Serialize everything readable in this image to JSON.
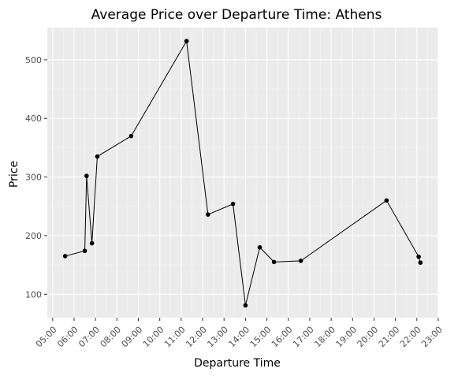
{
  "chart_data": {
    "type": "line",
    "title": "Average Price over Departure Time: Athens",
    "xlabel": "Departure Time",
    "ylabel": "Price",
    "xlim": [
      "04:45",
      "23:00"
    ],
    "ylim": [
      60,
      555
    ],
    "x_ticks": [
      "05:00",
      "06:00",
      "07:00",
      "08:00",
      "09:00",
      "10:00",
      "11:00",
      "12:00",
      "13:00",
      "14:00",
      "15:00",
      "16:00",
      "17:00",
      "18:00",
      "19:00",
      "20:00",
      "21:00",
      "22:00",
      "23:00"
    ],
    "y_ticks": [
      100,
      200,
      300,
      400,
      500
    ],
    "grid": true,
    "legend": "none",
    "background": "#ebebeb",
    "series": [
      {
        "x": [
          "05:35",
          "06:30",
          "06:35",
          "06:50",
          "07:05",
          "08:40",
          "11:15",
          "12:15",
          "13:25",
          "14:00",
          "14:40",
          "15:20",
          "16:35",
          "20:35",
          "22:05",
          "22:10"
        ],
        "values": [
          165,
          174,
          302,
          187,
          335,
          370,
          532,
          236,
          254,
          81,
          180,
          155,
          157,
          260,
          164,
          154
        ]
      }
    ]
  }
}
